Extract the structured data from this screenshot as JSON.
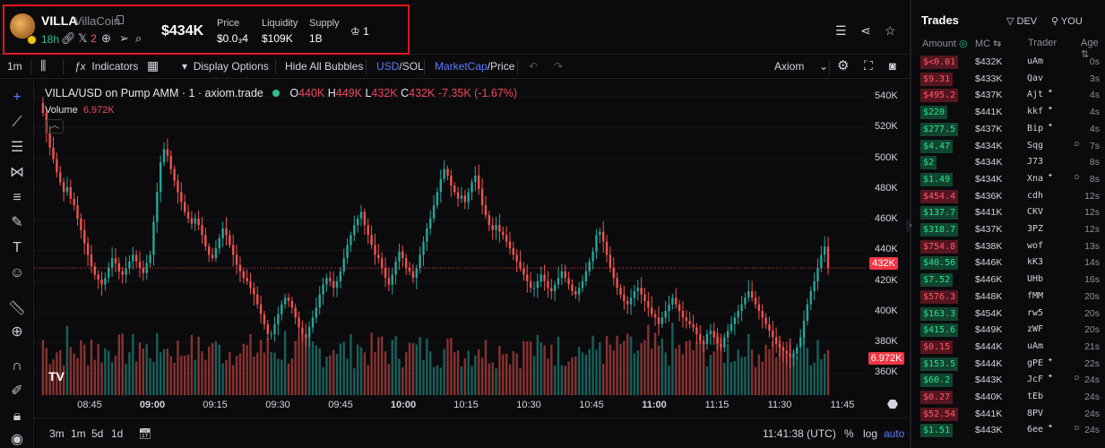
{
  "header": {
    "token_symbol": "VILLA",
    "token_name": "VillaCoin",
    "age": "18h",
    "x_count": "2",
    "market_cap": "$434K",
    "stats": [
      {
        "label": "Price",
        "value": "$0.0₃4"
      },
      {
        "label": "Liquidity",
        "value": "$109K"
      },
      {
        "label": "Supply",
        "value": "1B"
      }
    ],
    "holders_count": "1"
  },
  "toolbar": {
    "interval": "1m",
    "indicators": "Indicators",
    "display_options": "Display Options",
    "hide_bubbles": "Hide All Bubbles",
    "pair_usd": "USD",
    "pair_sep": "/",
    "pair_sol": "SOL",
    "mode_mcap": "MarketCap",
    "mode_price": "/Price",
    "source": "Axiom"
  },
  "chart_legend": {
    "title": "VILLA/USD on Pump AMM · 1 · axiom.trade",
    "o_label": "O",
    "o": "440K",
    "h_label": "H",
    "h": "449K",
    "l_label": "L",
    "l": "432K",
    "c_label": "C",
    "c": "432K",
    "change": "-7.35K (-1.67%)",
    "volume_label": "Volume",
    "volume": "6.972K"
  },
  "chart_data": {
    "type": "candlestick",
    "title": "VILLA/USD on Pump AMM · 1 · axiom.trade",
    "y_ticks": [
      "540K",
      "520K",
      "500K",
      "480K",
      "460K",
      "440K",
      "420K",
      "400K",
      "380K",
      "360K"
    ],
    "x_ticks": [
      "08:45",
      "09:00",
      "09:15",
      "09:30",
      "09:45",
      "10:00",
      "10:15",
      "10:30",
      "10:45",
      "11:00",
      "11:15",
      "11:30",
      "11:45"
    ],
    "x_ticks_bold": [
      "09:00",
      "10:00",
      "11:00"
    ],
    "ylim": [
      355,
      545
    ],
    "current_price_label": "432K",
    "volume_label": "6.972K",
    "close_series": [
      526,
      514,
      505,
      498,
      490,
      484,
      478,
      481,
      474,
      470,
      462,
      455,
      447,
      440,
      433,
      428,
      425,
      422,
      426,
      432,
      438,
      435,
      430,
      428,
      432,
      436,
      440,
      436,
      432,
      429,
      435,
      440,
      460,
      478,
      496,
      504,
      500,
      492,
      485,
      478,
      472,
      466,
      462,
      459,
      462,
      458,
      452,
      445,
      440,
      438,
      444,
      450,
      456,
      452,
      446,
      440,
      434,
      430,
      426,
      424,
      420,
      416,
      410,
      404,
      398,
      392,
      392,
      398,
      404,
      410,
      414,
      412,
      408,
      402,
      396,
      392,
      390,
      396,
      402,
      408,
      416,
      422,
      426,
      424,
      420,
      424,
      430,
      438,
      446,
      452,
      458,
      462,
      466,
      458,
      452,
      446,
      440,
      438,
      432,
      426,
      422,
      428,
      436,
      442,
      438,
      432,
      430,
      426,
      432,
      440,
      448,
      456,
      462,
      470,
      478,
      486,
      492,
      488,
      482,
      478,
      474,
      476,
      472,
      478,
      484,
      488,
      480,
      470,
      464,
      458,
      455,
      458,
      454,
      452,
      448,
      444,
      440,
      436,
      432,
      428,
      424,
      420,
      420,
      424,
      428,
      424,
      420,
      418,
      422,
      426,
      430,
      426,
      422,
      418,
      416,
      420,
      424,
      430,
      436,
      442,
      452,
      454,
      448,
      440,
      432,
      426,
      420,
      416,
      412,
      410,
      414,
      418,
      420,
      416,
      412,
      408,
      404,
      402,
      398,
      402,
      406,
      410,
      414,
      410,
      406,
      402,
      400,
      398,
      396,
      392,
      388,
      386,
      392,
      394,
      390,
      386,
      384,
      390,
      394,
      398,
      402,
      406,
      410,
      414,
      418,
      414,
      410,
      406,
      402,
      398,
      394,
      390,
      386,
      384,
      382,
      380,
      378,
      380,
      384,
      390,
      400,
      410,
      418,
      424,
      432,
      440,
      445,
      432
    ]
  },
  "bottom": {
    "ranges": [
      "3m",
      "1m",
      "5d",
      "1d"
    ],
    "time": "11:41:38 (UTC)",
    "pct": "%",
    "log": "log",
    "auto": "auto"
  },
  "trades": {
    "title": "Trades",
    "dev_label": "DEV",
    "you_label": "YOU",
    "col_amount": "Amount",
    "col_mc": "MC",
    "col_trader": "Trader",
    "col_age": "Age",
    "rows": [
      {
        "amount": "$<0.01",
        "mc": "$432K",
        "trader": "uAm",
        "age": "0s",
        "side": "sell",
        "mark": "",
        "mark2": ""
      },
      {
        "amount": "$9.31",
        "mc": "$433K",
        "trader": "Qav",
        "age": "3s",
        "side": "sell",
        "mark": "",
        "mark2": ""
      },
      {
        "amount": "$495.2",
        "mc": "$437K",
        "trader": "Ajt",
        "age": "4s",
        "side": "sell",
        "mark": "✦",
        "mark2": ""
      },
      {
        "amount": "$220",
        "mc": "$441K",
        "trader": "kkf",
        "age": "4s",
        "side": "buy",
        "mark": "✦",
        "mark2": ""
      },
      {
        "amount": "$277.5",
        "mc": "$437K",
        "trader": "Bip",
        "age": "4s",
        "side": "buy",
        "mark": "✦",
        "mark2": ""
      },
      {
        "amount": "$4.47",
        "mc": "$434K",
        "trader": "Sqg",
        "age": "7s",
        "side": "buy",
        "mark": "",
        "mark2": "D"
      },
      {
        "amount": "$2",
        "mc": "$434K",
        "trader": "J73",
        "age": "8s",
        "side": "buy",
        "mark": "",
        "mark2": ""
      },
      {
        "amount": "$1.49",
        "mc": "$434K",
        "trader": "Xna",
        "age": "8s",
        "side": "buy",
        "mark": "✦",
        "mark2": "D"
      },
      {
        "amount": "$454.4",
        "mc": "$436K",
        "trader": "cdh",
        "age": "12s",
        "side": "sell",
        "mark": "",
        "mark2": ""
      },
      {
        "amount": "$137.7",
        "mc": "$441K",
        "trader": "CKV",
        "age": "12s",
        "side": "buy",
        "mark": "",
        "mark2": ""
      },
      {
        "amount": "$318.7",
        "mc": "$437K",
        "trader": "3PZ",
        "age": "12s",
        "side": "buy",
        "mark": "",
        "mark2": ""
      },
      {
        "amount": "$754.8",
        "mc": "$438K",
        "trader": "wof",
        "age": "13s",
        "side": "sell",
        "mark": "",
        "mark2": ""
      },
      {
        "amount": "$40.56",
        "mc": "$446K",
        "trader": "kK3",
        "age": "14s",
        "side": "buy",
        "mark": "",
        "mark2": ""
      },
      {
        "amount": "$7.52",
        "mc": "$446K",
        "trader": "UHb",
        "age": "16s",
        "side": "buy",
        "mark": "",
        "mark2": ""
      },
      {
        "amount": "$576.3",
        "mc": "$448K",
        "trader": "fMM",
        "age": "20s",
        "side": "sell",
        "mark": "",
        "mark2": ""
      },
      {
        "amount": "$163.3",
        "mc": "$454K",
        "trader": "rw5",
        "age": "20s",
        "side": "buy",
        "mark": "",
        "mark2": ""
      },
      {
        "amount": "$415.6",
        "mc": "$449K",
        "trader": "zWF",
        "age": "20s",
        "side": "buy",
        "mark": "",
        "mark2": ""
      },
      {
        "amount": "$0.15",
        "mc": "$444K",
        "trader": "uAm",
        "age": "21s",
        "side": "sell",
        "mark": "",
        "mark2": ""
      },
      {
        "amount": "$153.5",
        "mc": "$444K",
        "trader": "gPE",
        "age": "22s",
        "side": "buy",
        "mark": "✦",
        "mark2": ""
      },
      {
        "amount": "$60.2",
        "mc": "$443K",
        "trader": "JcF",
        "age": "24s",
        "side": "buy",
        "mark": "✦",
        "mark2": "D"
      },
      {
        "amount": "$0.27",
        "mc": "$440K",
        "trader": "tEb",
        "age": "24s",
        "side": "sell",
        "mark": "",
        "mark2": ""
      },
      {
        "amount": "$52.54",
        "mc": "$441K",
        "trader": "8PV",
        "age": "24s",
        "side": "sell",
        "mark": "",
        "mark2": ""
      },
      {
        "amount": "$1.51",
        "mc": "$443K",
        "trader": "6ee",
        "age": "24s",
        "side": "buy",
        "mark": "✦",
        "mark2": "D"
      }
    ]
  }
}
